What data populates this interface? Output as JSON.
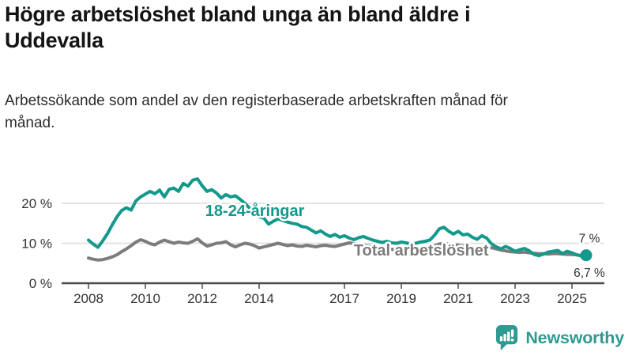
{
  "header": {
    "title": "Högre arbetslöshet bland unga än bland äldre i Uddevalla",
    "subtitle": "Arbetssökande som andel av den registerbaserade arbetskraften månad för månad."
  },
  "chart_data": {
    "type": "line",
    "title": "Högre arbetslöshet bland unga än bland äldre i Uddevalla",
    "subtitle": "Arbetssökande som andel av den registerbaserade arbetskraften månad för månad.",
    "x_start": 2008.0,
    "x_step_years": 0.166667,
    "x_end": 2025.5,
    "x_ticks": [
      2008,
      2010,
      2012,
      2014,
      2017,
      2019,
      2021,
      2023,
      2025
    ],
    "y_ticks": [
      0,
      10,
      20
    ],
    "y_tick_suffix": " %",
    "ylim": [
      0,
      27.5
    ],
    "grid": "horizontal",
    "legend_position": "inline-labels",
    "colors": {
      "young": "#13998c",
      "total": "#7c7c7c",
      "axis": "#4a4a4a",
      "grid": "#dcdcdc",
      "tick_text": "#333333"
    },
    "series": [
      {
        "name": "18-24-åringar",
        "color": "#13998c",
        "end_label": "7 %",
        "end_label_position": "above",
        "end_marker": true,
        "label_anchor": {
          "x": 2013.85,
          "y": 18.2
        },
        "values": [
          10.8,
          9.8,
          9.0,
          10.6,
          12.4,
          14.6,
          16.6,
          18.2,
          18.9,
          18.3,
          20.6,
          21.6,
          22.3,
          23.0,
          22.4,
          23.3,
          21.6,
          23.5,
          23.8,
          23.0,
          25.0,
          24.3,
          25.8,
          26.1,
          24.4,
          23.0,
          23.4,
          22.6,
          21.3,
          22.2,
          21.6,
          21.9,
          21.0,
          20.0,
          18.8,
          17.6,
          16.6,
          16.3,
          14.8,
          15.5,
          16.1,
          15.7,
          15.3,
          15.0,
          14.8,
          14.2,
          14.0,
          13.3,
          12.6,
          13.1,
          12.3,
          11.7,
          12.2,
          11.5,
          11.9,
          11.3,
          10.9,
          11.4,
          11.7,
          11.2,
          10.8,
          10.5,
          10.2,
          10.5,
          10.1,
          10.0,
          10.3,
          10.1,
          9.8,
          10.0,
          10.3,
          10.5,
          10.8,
          12.0,
          13.6,
          14.0,
          13.0,
          12.3,
          13.0,
          12.1,
          12.3,
          11.5,
          11.0,
          11.9,
          11.3,
          9.9,
          9.1,
          8.6,
          9.2,
          8.7,
          8.0,
          8.4,
          8.7,
          8.1,
          7.2,
          6.9,
          7.3,
          7.8,
          8.0,
          8.2,
          7.4,
          8.0,
          7.6,
          7.1,
          6.8,
          7.0
        ]
      },
      {
        "name": "Total arbetslöshet",
        "color": "#7c7c7c",
        "end_label": "6,7 %",
        "end_label_position": "below",
        "end_marker": false,
        "label_anchor": {
          "x": 2019.7,
          "y": 8.3
        },
        "values": [
          6.3,
          6.0,
          5.8,
          5.9,
          6.2,
          6.6,
          7.1,
          7.9,
          8.6,
          9.4,
          10.3,
          10.9,
          10.5,
          9.9,
          9.6,
          10.3,
          10.8,
          10.4,
          10.0,
          10.3,
          10.1,
          10.0,
          10.5,
          11.1,
          10.1,
          9.3,
          9.6,
          10.0,
          10.1,
          10.4,
          9.6,
          9.1,
          9.6,
          10.0,
          9.8,
          9.4,
          8.8,
          9.1,
          9.4,
          9.7,
          10.0,
          9.7,
          9.4,
          9.6,
          9.3,
          9.2,
          9.5,
          9.3,
          9.1,
          9.4,
          9.5,
          9.3,
          9.2,
          9.5,
          9.8,
          10.1,
          9.9,
          9.7,
          9.5,
          9.3,
          9.1,
          8.9,
          8.7,
          8.6,
          8.5,
          8.4,
          8.4,
          8.3,
          8.2,
          8.3,
          8.4,
          8.6,
          8.8,
          9.3,
          9.8,
          10.0,
          9.8,
          9.6,
          9.5,
          9.3,
          9.1,
          8.9,
          8.7,
          8.8,
          8.8,
          8.9,
          8.6,
          8.3,
          8.1,
          7.9,
          7.8,
          7.7,
          7.8,
          7.6,
          7.5,
          7.4,
          7.4,
          7.3,
          7.4,
          7.4,
          7.3,
          7.2,
          7.2,
          7.1,
          6.9,
          6.7
        ]
      }
    ]
  },
  "branding": {
    "name": "Newsworthy",
    "logo_icon": "bar-chart-speech-bubble-icon",
    "color": "#2e9a91"
  }
}
